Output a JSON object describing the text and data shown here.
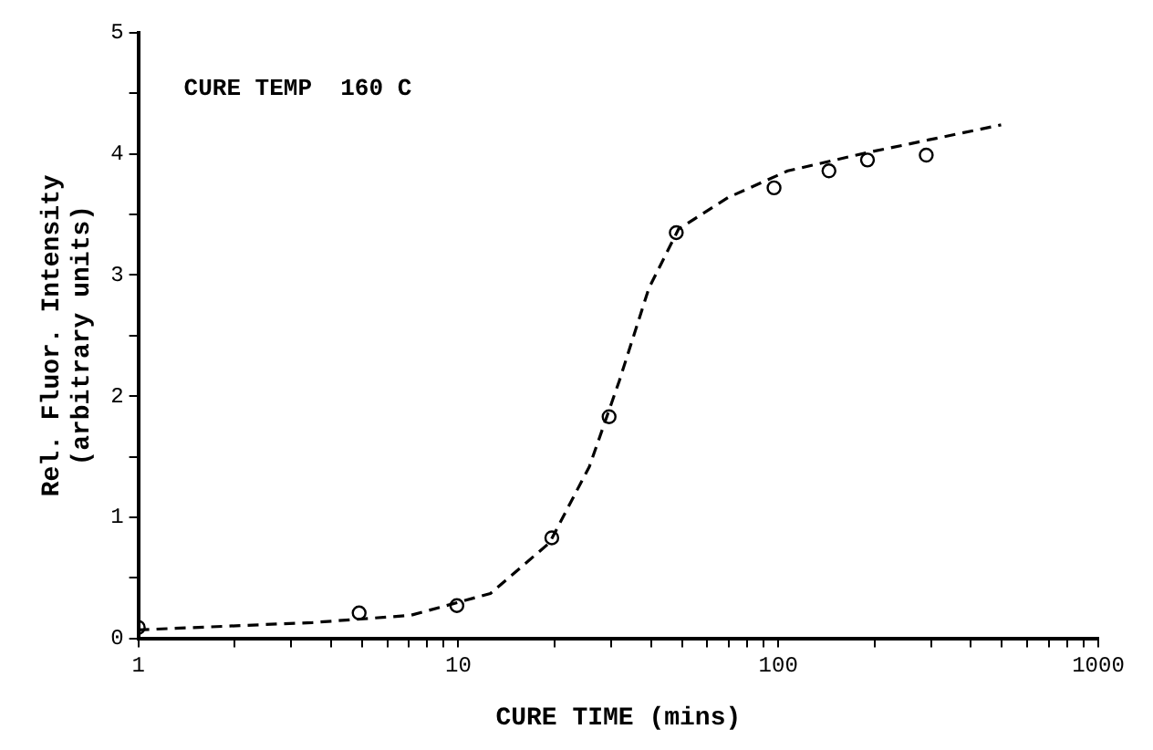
{
  "chart_data": {
    "type": "scatter",
    "xlabel": "CURE TIME (mins)",
    "ylabel": "Rel. Fluor. Intensity\n(arbitrary units)",
    "annotations": [
      "CURE TEMP  160 C"
    ],
    "log": "x",
    "xlim": [
      1,
      1000
    ],
    "ylim": [
      0,
      5
    ],
    "xticks": [
      1,
      {
        "value": 2,
        "label": null
      },
      {
        "value": 3,
        "label": null
      },
      {
        "value": 4,
        "label": null
      },
      {
        "value": 5,
        "label": null
      },
      {
        "value": 6,
        "label": null
      },
      {
        "value": 7,
        "label": null
      },
      {
        "value": 8,
        "label": null
      },
      {
        "value": 9,
        "label": null
      },
      10,
      {
        "value": 20,
        "label": null
      },
      {
        "value": 30,
        "label": null
      },
      {
        "value": 40,
        "label": null
      },
      {
        "value": 50,
        "label": null
      },
      {
        "value": 60,
        "label": null
      },
      {
        "value": 70,
        "label": null
      },
      {
        "value": 80,
        "label": null
      },
      {
        "value": 90,
        "label": null
      },
      100,
      {
        "value": 200,
        "label": null
      },
      {
        "value": 300,
        "label": null
      },
      {
        "value": 400,
        "label": null
      },
      {
        "value": 500,
        "label": null
      },
      {
        "value": 600,
        "label": null
      },
      {
        "value": 700,
        "label": null
      },
      {
        "value": 800,
        "label": null
      },
      {
        "value": 900,
        "label": null
      },
      1000
    ],
    "yticks": [
      0,
      {
        "value": 0.5,
        "label": null
      },
      1,
      {
        "value": 1.5,
        "label": null
      },
      2,
      {
        "value": 2.5,
        "label": null
      },
      3,
      {
        "value": 3.5,
        "label": null
      },
      4,
      {
        "value": 4.5,
        "label": null
      },
      5
    ],
    "grid": false,
    "legend": false,
    "series": [
      {
        "type": "line",
        "color": "#000000",
        "marker": "none",
        "line_style": "dashed",
        "x": [
          1,
          3.5,
          7.1,
          12.6,
          19.3,
          25.7,
          31.8,
          39.4,
          48.8,
          69.7,
          107,
          189,
          497
        ],
        "values": [
          0.07,
          0.13,
          0.19,
          0.37,
          0.79,
          1.42,
          2.12,
          2.89,
          3.38,
          3.64,
          3.86,
          4.01,
          4.24
        ]
      },
      {
        "color": "#000000",
        "marker": "circle",
        "x": [
          1,
          4.9,
          9.9,
          19.6,
          29.6,
          48,
          97,
          144,
          190,
          290
        ],
        "values": [
          0.09,
          0.21,
          0.27,
          0.83,
          1.83,
          3.35,
          3.72,
          3.86,
          3.95,
          3.99
        ]
      }
    ]
  }
}
